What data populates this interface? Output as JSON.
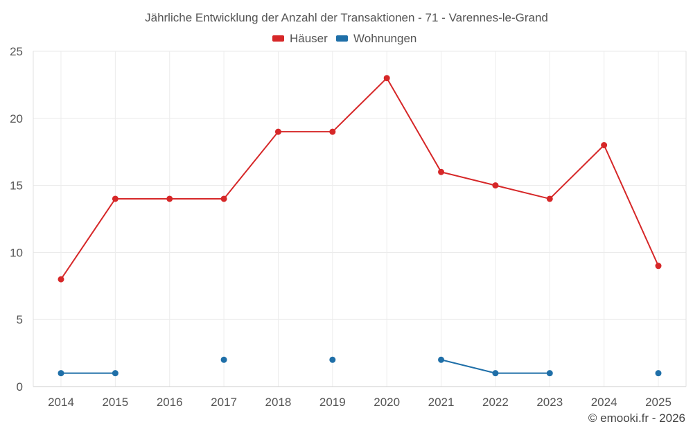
{
  "chart_data": {
    "type": "line",
    "title": "Jährliche Entwicklung der Anzahl der Transaktionen - 71 - Varennes-le-Grand",
    "categories": [
      "2014",
      "2015",
      "2016",
      "2017",
      "2018",
      "2019",
      "2020",
      "2021",
      "2022",
      "2023",
      "2024",
      "2025"
    ],
    "ylim": [
      0,
      25
    ],
    "yticks": [
      0,
      5,
      10,
      15,
      20,
      25
    ],
    "grid": true,
    "legend_position": "top-center",
    "series": [
      {
        "name": "Häuser",
        "color": "#d62728",
        "values": [
          8,
          14,
          14,
          14,
          19,
          19,
          23,
          16,
          15,
          14,
          18,
          9
        ]
      },
      {
        "name": "Wohnungen",
        "color": "#1f6fa8",
        "values": [
          1,
          1,
          null,
          2,
          null,
          2,
          null,
          2,
          1,
          1,
          null,
          1
        ]
      }
    ],
    "credit": "© emooki.fr - 2026"
  }
}
